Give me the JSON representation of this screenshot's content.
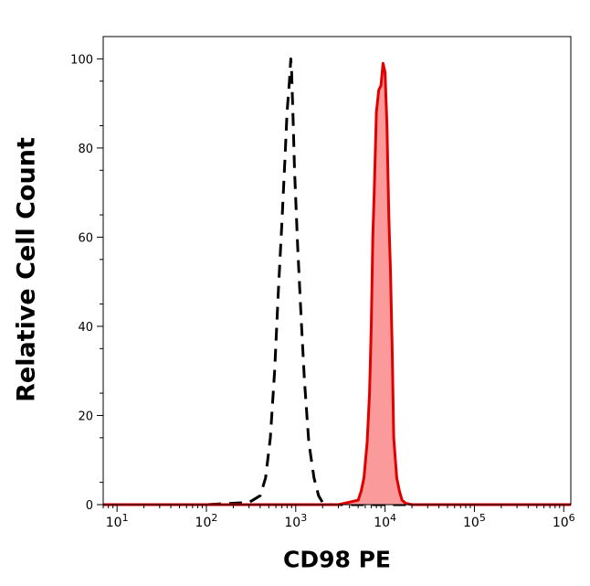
{
  "chart_data": {
    "type": "area",
    "title": "",
    "xlabel": "CD98 PE",
    "ylabel": "Relative Cell Count",
    "x_scale": "log",
    "xlim": [
      7,
      1200000
    ],
    "ylim": [
      0,
      105
    ],
    "x_ticks": [
      {
        "value": 10,
        "base": "10",
        "exp": "1"
      },
      {
        "value": 100,
        "base": "10",
        "exp": "2"
      },
      {
        "value": 1000,
        "base": "10",
        "exp": "3"
      },
      {
        "value": 10000,
        "base": "10",
        "exp": "4"
      },
      {
        "value": 100000,
        "base": "10",
        "exp": "5"
      },
      {
        "value": 1000000,
        "base": "10",
        "exp": "6"
      }
    ],
    "y_ticks": [
      0,
      20,
      40,
      60,
      80,
      100
    ],
    "grid": false,
    "series": [
      {
        "style": "dashed",
        "color": "#000000",
        "fill": "none",
        "x": [
          7,
          100,
          300,
          400,
          460,
          520,
          580,
          640,
          700,
          760,
          800,
          850,
          880,
          900,
          930,
          970,
          1050,
          1150,
          1250,
          1400,
          1600,
          1800,
          2000,
          2500,
          3000,
          1200000
        ],
        "y": [
          0,
          0,
          0.5,
          2,
          6,
          15,
          30,
          48,
          63,
          78,
          88,
          95,
          100,
          97,
          88,
          75,
          58,
          42,
          28,
          14,
          6,
          2,
          0.5,
          0,
          0,
          0
        ]
      },
      {
        "style": "solid",
        "color": "#e00000",
        "fill": "#fa9a9a",
        "x": [
          7,
          3000,
          5000,
          5400,
          5800,
          6300,
          6700,
          7000,
          7300,
          7600,
          8000,
          8500,
          9000,
          9500,
          10000,
          10500,
          11000,
          11500,
          12000,
          12500,
          13500,
          14500,
          15500,
          17000,
          20000,
          1200000
        ],
        "y": [
          0,
          0,
          1,
          3,
          6,
          14,
          25,
          40,
          60,
          72,
          88,
          93,
          94,
          99,
          97,
          85,
          65,
          52,
          35,
          15,
          6,
          3,
          1,
          0.3,
          0,
          0
        ]
      }
    ]
  }
}
